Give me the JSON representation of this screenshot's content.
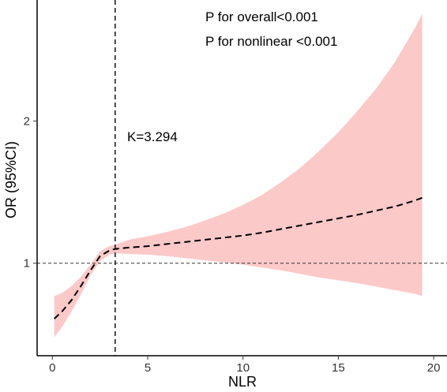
{
  "chart_data": {
    "type": "line",
    "title": "",
    "xlabel": "NLR",
    "ylabel": "OR (95%CI)",
    "xlim": [
      -0.8,
      20.7
    ],
    "ylim": [
      0.35,
      2.85
    ],
    "x_ticks": [
      0,
      5,
      10,
      15,
      20
    ],
    "x_tick_labels": [
      "0",
      "5",
      "10",
      "15",
      "20"
    ],
    "y_ticks": [
      1,
      2
    ],
    "y_tick_labels": [
      "1",
      "2"
    ],
    "grid": false,
    "reference_lines": {
      "y": 1,
      "x": 3.294
    },
    "annotations": {
      "p_overall": "P for overall<0.001",
      "p_nonlinear": "P for nonlinear <0.001",
      "knot": "K=3.294"
    },
    "series": [
      {
        "x": [
          0.1,
          0.5,
          1.0,
          1.5,
          2.0,
          2.5,
          3.0,
          3.294,
          4,
          5,
          6,
          7,
          8,
          9,
          10,
          11,
          12,
          13,
          14,
          15,
          16,
          17,
          18,
          19,
          19.4
        ],
        "y": [
          0.61,
          0.66,
          0.74,
          0.84,
          0.95,
          1.05,
          1.09,
          1.1,
          1.11,
          1.12,
          1.135,
          1.15,
          1.165,
          1.18,
          1.195,
          1.215,
          1.24,
          1.265,
          1.29,
          1.315,
          1.34,
          1.37,
          1.4,
          1.44,
          1.46
        ],
        "lower": [
          0.48,
          0.55,
          0.66,
          0.78,
          0.915,
          1.015,
          1.06,
          1.07,
          1.065,
          1.06,
          1.05,
          1.035,
          1.02,
          1.005,
          0.99,
          0.97,
          0.95,
          0.925,
          0.9,
          0.88,
          0.86,
          0.835,
          0.81,
          0.785,
          0.77
        ],
        "upper": [
          0.77,
          0.79,
          0.84,
          0.905,
          0.99,
          1.085,
          1.12,
          1.13,
          1.165,
          1.19,
          1.22,
          1.255,
          1.3,
          1.35,
          1.41,
          1.48,
          1.57,
          1.67,
          1.79,
          1.92,
          2.07,
          2.23,
          2.42,
          2.65,
          2.75
        ]
      }
    ],
    "colors": {
      "ci_band": "#fcc9c9",
      "line": "#000000"
    }
  }
}
